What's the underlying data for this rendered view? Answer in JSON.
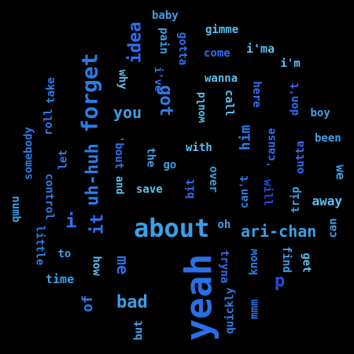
{
  "palette": {
    "background": "#000000",
    "colors": [
      "#1e4fe0",
      "#2a7de8",
      "#3aa0e8",
      "#5bc0f0",
      "#2f6ff0"
    ]
  },
  "words": [
    {
      "text": "yeah",
      "color": "#2a6fe8"
    },
    {
      "text": "about",
      "color": "#3aa0e8"
    },
    {
      "text": "forget",
      "color": "#2a7de8"
    },
    {
      "text": "uh-huh",
      "color": "#2a7de8"
    },
    {
      "text": "got",
      "color": "#2a7de8"
    },
    {
      "text": "idea",
      "color": "#2f6ff0"
    },
    {
      "text": "ari-chan",
      "color": "#3aa0e8"
    },
    {
      "text": "bad",
      "color": "#3aa0e8"
    },
    {
      "text": "you",
      "color": "#3a9ee8"
    },
    {
      "text": "it",
      "color": "#2f6ff0"
    },
    {
      "text": "i",
      "color": "#2f6ff0"
    },
    {
      "text": "me",
      "color": "#2a6fe8"
    },
    {
      "text": "d",
      "color": "#1e4fe0"
    },
    {
      "text": "him",
      "color": "#2a7de8"
    },
    {
      "text": "of",
      "color": "#2a7de8"
    },
    {
      "text": "baby",
      "color": "#3aa0e8"
    },
    {
      "text": "gimme",
      "color": "#5bc0f0"
    },
    {
      "text": "i'ma",
      "color": "#5bc0f0"
    },
    {
      "text": "come",
      "color": "#2f6ff0"
    },
    {
      "text": "gotta",
      "color": "#2f6ff0"
    },
    {
      "text": "pain",
      "color": "#3aa0e8"
    },
    {
      "text": "i've",
      "color": "#2f6ff0"
    },
    {
      "text": "why",
      "color": "#5bc0f0"
    },
    {
      "text": "i'm",
      "color": "#5bc0f0"
    },
    {
      "text": "wanna",
      "color": "#5bc0f0"
    },
    {
      "text": "here",
      "color": "#2f6ff0"
    },
    {
      "text": "don't",
      "color": "#2f6ff0"
    },
    {
      "text": "boy",
      "color": "#3aa0e8"
    },
    {
      "text": "roll",
      "color": "#2a7de8"
    },
    {
      "text": "take",
      "color": "#2a7de8"
    },
    {
      "text": "somebody",
      "color": "#2a7de8"
    },
    {
      "text": "would",
      "color": "#5bc0f0"
    },
    {
      "text": "call",
      "color": "#5bc0f0"
    },
    {
      "text": "'cause",
      "color": "#2f6ff0"
    },
    {
      "text": "been",
      "color": "#3aa0e8"
    },
    {
      "text": "let",
      "color": "#2a7de8"
    },
    {
      "text": "'bout",
      "color": "#2f6ff0"
    },
    {
      "text": "the",
      "color": "#3aa0e8"
    },
    {
      "text": "with",
      "color": "#5bc0f0"
    },
    {
      "text": "outta",
      "color": "#2f6ff0"
    },
    {
      "text": "go",
      "color": "#3aa0e8"
    },
    {
      "text": "we",
      "color": "#3aa0e8"
    },
    {
      "text": "numb",
      "color": "#3aa0e8"
    },
    {
      "text": "control",
      "color": "#2a7de8"
    },
    {
      "text": "and",
      "color": "#5bc0f0"
    },
    {
      "text": "bit",
      "color": "#2f6ff0"
    },
    {
      "text": "over",
      "color": "#3aa0e8"
    },
    {
      "text": "save",
      "color": "#5bc0f0"
    },
    {
      "text": "can't",
      "color": "#2a7de8"
    },
    {
      "text": "will",
      "color": "#1e4fe0"
    },
    {
      "text": "trip",
      "color": "#3aa0e8"
    },
    {
      "text": "away",
      "color": "#5bc0f0"
    },
    {
      "text": "little",
      "color": "#2a7de8"
    },
    {
      "text": "oh",
      "color": "#3aa0e8"
    },
    {
      "text": "can",
      "color": "#3aa0e8"
    },
    {
      "text": "to",
      "color": "#3aa0e8"
    },
    {
      "text": "how",
      "color": "#5bc0f0"
    },
    {
      "text": "tryna",
      "color": "#2f6ff0"
    },
    {
      "text": "know",
      "color": "#2a7de8"
    },
    {
      "text": "find",
      "color": "#3aa0e8"
    },
    {
      "text": "get",
      "color": "#5bc0f0"
    },
    {
      "text": "time",
      "color": "#3aa0e8"
    },
    {
      "text": "mmm",
      "color": "#2f6ff0"
    },
    {
      "text": "quickly",
      "color": "#2a7de8"
    },
    {
      "text": "but",
      "color": "#3aa0e8"
    }
  ]
}
